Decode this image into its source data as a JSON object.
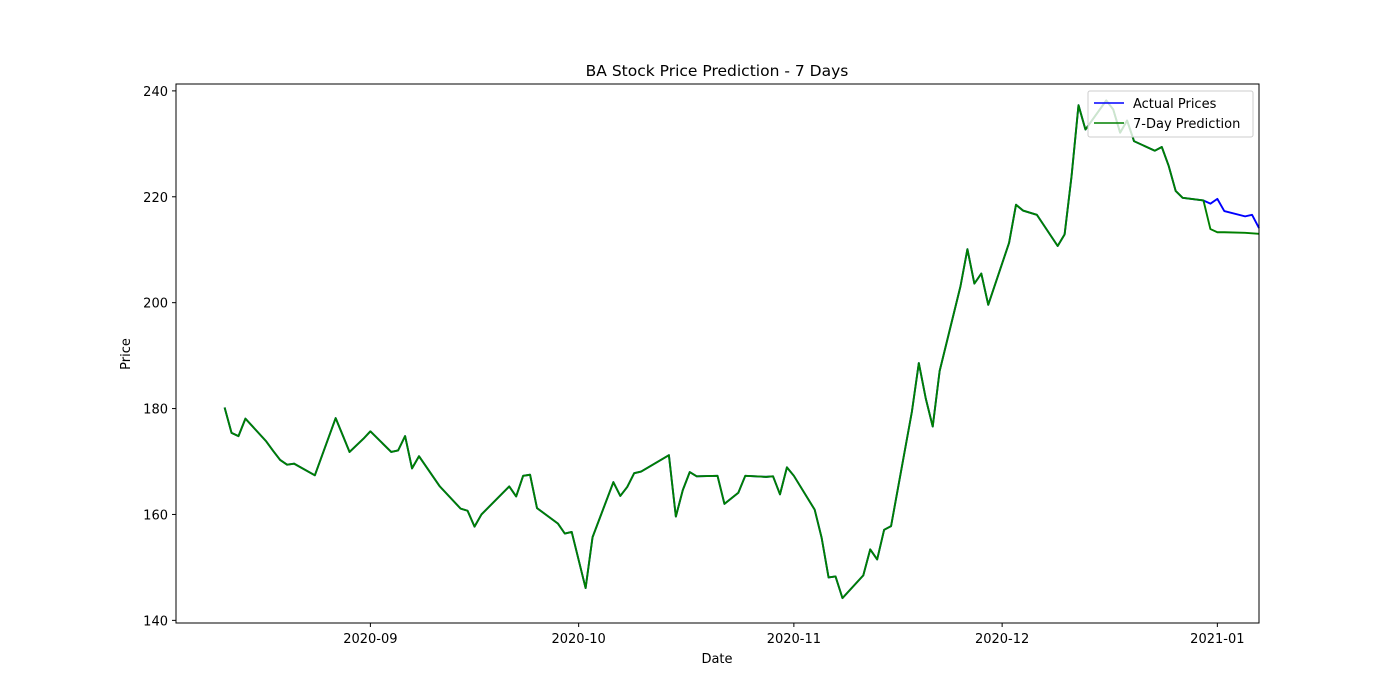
{
  "chart_data": {
    "type": "line",
    "title": "BA Stock Price Prediction - 7 Days",
    "xlabel": "Date",
    "ylabel": "Price",
    "xlim": [
      "2020-08-04",
      "2021-01-07"
    ],
    "ylim": [
      139.5,
      241.3
    ],
    "x_ticks": [
      "2020-09-01",
      "2020-10-01",
      "2020-11-01",
      "2020-12-01",
      "2021-01-01"
    ],
    "x_tick_labels": [
      "2020-09",
      "2020-10",
      "2020-11",
      "2020-12",
      "2021-01"
    ],
    "y_ticks": [
      140,
      160,
      180,
      200,
      220,
      240
    ],
    "grid": false,
    "legend_position": "top-right",
    "series": [
      {
        "name": "Actual Prices",
        "color": "#0000ff",
        "points": [
          [
            "2020-08-11",
            180.2
          ],
          [
            "2020-08-12",
            175.4
          ],
          [
            "2020-08-13",
            174.8
          ],
          [
            "2020-08-14",
            178.1
          ],
          [
            "2020-08-17",
            173.8
          ],
          [
            "2020-08-18",
            172.0
          ],
          [
            "2020-08-19",
            170.3
          ],
          [
            "2020-08-20",
            169.4
          ],
          [
            "2020-08-21",
            169.6
          ],
          [
            "2020-08-24",
            167.4
          ],
          [
            "2020-08-27",
            178.2
          ],
          [
            "2020-08-28",
            175.0
          ],
          [
            "2020-08-29",
            171.8
          ],
          [
            "2020-08-31",
            174.3
          ],
          [
            "2020-09-01",
            175.7
          ],
          [
            "2020-09-04",
            171.8
          ],
          [
            "2020-09-05",
            172.1
          ],
          [
            "2020-09-06",
            174.8
          ],
          [
            "2020-09-07",
            168.7
          ],
          [
            "2020-09-08",
            171.0
          ],
          [
            "2020-09-11",
            165.3
          ],
          [
            "2020-09-14",
            161.1
          ],
          [
            "2020-09-15",
            160.7
          ],
          [
            "2020-09-16",
            157.7
          ],
          [
            "2020-09-17",
            160.0
          ],
          [
            "2020-09-21",
            165.3
          ],
          [
            "2020-09-22",
            163.4
          ],
          [
            "2020-09-23",
            167.3
          ],
          [
            "2020-09-24",
            167.5
          ],
          [
            "2020-09-25",
            161.2
          ],
          [
            "2020-09-28",
            158.3
          ],
          [
            "2020-09-29",
            156.4
          ],
          [
            "2020-09-30",
            156.7
          ],
          [
            "2020-10-02",
            146.1
          ],
          [
            "2020-10-03",
            155.7
          ],
          [
            "2020-10-06",
            166.1
          ],
          [
            "2020-10-07",
            163.5
          ],
          [
            "2020-10-08",
            165.2
          ],
          [
            "2020-10-09",
            167.8
          ],
          [
            "2020-10-10",
            168.1
          ],
          [
            "2020-10-14",
            171.2
          ],
          [
            "2020-10-15",
            159.6
          ],
          [
            "2020-10-16",
            164.6
          ],
          [
            "2020-10-17",
            168.0
          ],
          [
            "2020-10-18",
            167.2
          ],
          [
            "2020-10-21",
            167.3
          ],
          [
            "2020-10-22",
            162.0
          ],
          [
            "2020-10-24",
            164.1
          ],
          [
            "2020-10-25",
            167.3
          ],
          [
            "2020-10-28",
            167.1
          ],
          [
            "2020-10-29",
            167.2
          ],
          [
            "2020-10-30",
            163.8
          ],
          [
            "2020-10-31",
            168.9
          ],
          [
            "2020-11-01",
            167.3
          ],
          [
            "2020-11-04",
            160.9
          ],
          [
            "2020-11-05",
            155.6
          ],
          [
            "2020-11-06",
            148.1
          ],
          [
            "2020-11-07",
            148.3
          ],
          [
            "2020-11-08",
            144.2
          ],
          [
            "2020-11-11",
            148.5
          ],
          [
            "2020-11-12",
            153.4
          ],
          [
            "2020-11-13",
            151.5
          ],
          [
            "2020-11-14",
            157.1
          ],
          [
            "2020-11-15",
            157.8
          ],
          [
            "2020-11-18",
            179.4
          ],
          [
            "2020-11-19",
            188.6
          ],
          [
            "2020-11-20",
            181.9
          ],
          [
            "2020-11-21",
            176.6
          ],
          [
            "2020-11-22",
            187.1
          ],
          [
            "2020-11-25",
            203.1
          ],
          [
            "2020-11-26",
            210.1
          ],
          [
            "2020-11-27",
            203.6
          ],
          [
            "2020-11-28",
            205.5
          ],
          [
            "2020-11-29",
            199.6
          ],
          [
            "2020-12-02",
            211.3
          ],
          [
            "2020-12-03",
            218.5
          ],
          [
            "2020-12-04",
            217.4
          ],
          [
            "2020-12-06",
            216.6
          ],
          [
            "2020-12-09",
            210.7
          ],
          [
            "2020-12-10",
            212.9
          ],
          [
            "2020-12-11",
            223.9
          ],
          [
            "2020-12-12",
            237.3
          ],
          [
            "2020-12-13",
            232.7
          ],
          [
            "2020-12-16",
            238.2
          ],
          [
            "2020-12-17",
            236.5
          ],
          [
            "2020-12-18",
            232.1
          ],
          [
            "2020-12-19",
            234.4
          ],
          [
            "2020-12-20",
            230.5
          ],
          [
            "2020-12-23",
            228.7
          ],
          [
            "2020-12-24",
            229.4
          ],
          [
            "2020-12-25",
            225.8
          ],
          [
            "2020-12-26",
            221.1
          ],
          [
            "2020-12-27",
            219.8
          ],
          [
            "2020-12-30",
            219.3
          ],
          [
            "2020-12-31",
            218.7
          ],
          [
            "2021-01-01",
            219.6
          ],
          [
            "2021-01-02",
            217.3
          ],
          [
            "2021-01-05",
            216.3
          ],
          [
            "2021-01-06",
            216.6
          ],
          [
            "2021-01-07",
            214.1
          ]
        ]
      },
      {
        "name": "7-Day Prediction",
        "color": "#008000",
        "points": [
          [
            "2020-08-11",
            180.2
          ],
          [
            "2020-08-12",
            175.4
          ],
          [
            "2020-08-13",
            174.8
          ],
          [
            "2020-08-14",
            178.1
          ],
          [
            "2020-08-17",
            173.8
          ],
          [
            "2020-08-18",
            172.0
          ],
          [
            "2020-08-19",
            170.3
          ],
          [
            "2020-08-20",
            169.4
          ],
          [
            "2020-08-21",
            169.6
          ],
          [
            "2020-08-24",
            167.4
          ],
          [
            "2020-08-27",
            178.2
          ],
          [
            "2020-08-28",
            175.0
          ],
          [
            "2020-08-29",
            171.8
          ],
          [
            "2020-08-31",
            174.3
          ],
          [
            "2020-09-01",
            175.7
          ],
          [
            "2020-09-04",
            171.8
          ],
          [
            "2020-09-05",
            172.1
          ],
          [
            "2020-09-06",
            174.8
          ],
          [
            "2020-09-07",
            168.7
          ],
          [
            "2020-09-08",
            171.0
          ],
          [
            "2020-09-11",
            165.3
          ],
          [
            "2020-09-14",
            161.1
          ],
          [
            "2020-09-15",
            160.7
          ],
          [
            "2020-09-16",
            157.7
          ],
          [
            "2020-09-17",
            160.0
          ],
          [
            "2020-09-21",
            165.3
          ],
          [
            "2020-09-22",
            163.4
          ],
          [
            "2020-09-23",
            167.3
          ],
          [
            "2020-09-24",
            167.5
          ],
          [
            "2020-09-25",
            161.2
          ],
          [
            "2020-09-28",
            158.3
          ],
          [
            "2020-09-29",
            156.4
          ],
          [
            "2020-09-30",
            156.7
          ],
          [
            "2020-10-02",
            146.1
          ],
          [
            "2020-10-03",
            155.7
          ],
          [
            "2020-10-06",
            166.1
          ],
          [
            "2020-10-07",
            163.5
          ],
          [
            "2020-10-08",
            165.2
          ],
          [
            "2020-10-09",
            167.8
          ],
          [
            "2020-10-10",
            168.1
          ],
          [
            "2020-10-14",
            171.2
          ],
          [
            "2020-10-15",
            159.6
          ],
          [
            "2020-10-16",
            164.6
          ],
          [
            "2020-10-17",
            168.0
          ],
          [
            "2020-10-18",
            167.2
          ],
          [
            "2020-10-21",
            167.3
          ],
          [
            "2020-10-22",
            162.0
          ],
          [
            "2020-10-24",
            164.1
          ],
          [
            "2020-10-25",
            167.3
          ],
          [
            "2020-10-28",
            167.1
          ],
          [
            "2020-10-29",
            167.2
          ],
          [
            "2020-10-30",
            163.8
          ],
          [
            "2020-10-31",
            168.9
          ],
          [
            "2020-11-01",
            167.3
          ],
          [
            "2020-11-04",
            160.9
          ],
          [
            "2020-11-05",
            155.6
          ],
          [
            "2020-11-06",
            148.1
          ],
          [
            "2020-11-07",
            148.3
          ],
          [
            "2020-11-08",
            144.2
          ],
          [
            "2020-11-11",
            148.5
          ],
          [
            "2020-11-12",
            153.4
          ],
          [
            "2020-11-13",
            151.5
          ],
          [
            "2020-11-14",
            157.1
          ],
          [
            "2020-11-15",
            157.8
          ],
          [
            "2020-11-18",
            179.4
          ],
          [
            "2020-11-19",
            188.6
          ],
          [
            "2020-11-20",
            181.9
          ],
          [
            "2020-11-21",
            176.6
          ],
          [
            "2020-11-22",
            187.1
          ],
          [
            "2020-11-25",
            203.1
          ],
          [
            "2020-11-26",
            210.1
          ],
          [
            "2020-11-27",
            203.6
          ],
          [
            "2020-11-28",
            205.5
          ],
          [
            "2020-11-29",
            199.6
          ],
          [
            "2020-12-02",
            211.3
          ],
          [
            "2020-12-03",
            218.5
          ],
          [
            "2020-12-04",
            217.4
          ],
          [
            "2020-12-06",
            216.6
          ],
          [
            "2020-12-09",
            210.7
          ],
          [
            "2020-12-10",
            212.9
          ],
          [
            "2020-12-11",
            223.9
          ],
          [
            "2020-12-12",
            237.3
          ],
          [
            "2020-12-13",
            232.7
          ],
          [
            "2020-12-16",
            238.2
          ],
          [
            "2020-12-17",
            236.5
          ],
          [
            "2020-12-18",
            232.1
          ],
          [
            "2020-12-19",
            234.4
          ],
          [
            "2020-12-20",
            230.5
          ],
          [
            "2020-12-23",
            228.7
          ],
          [
            "2020-12-24",
            229.4
          ],
          [
            "2020-12-25",
            225.8
          ],
          [
            "2020-12-26",
            221.1
          ],
          [
            "2020-12-27",
            219.8
          ],
          [
            "2020-12-30",
            219.3
          ],
          [
            "2020-12-31",
            213.9
          ],
          [
            "2021-01-01",
            213.3
          ],
          [
            "2021-01-02",
            213.3
          ],
          [
            "2021-01-05",
            213.2
          ],
          [
            "2021-01-06",
            213.1
          ],
          [
            "2021-01-07",
            213.0
          ]
        ]
      }
    ]
  }
}
